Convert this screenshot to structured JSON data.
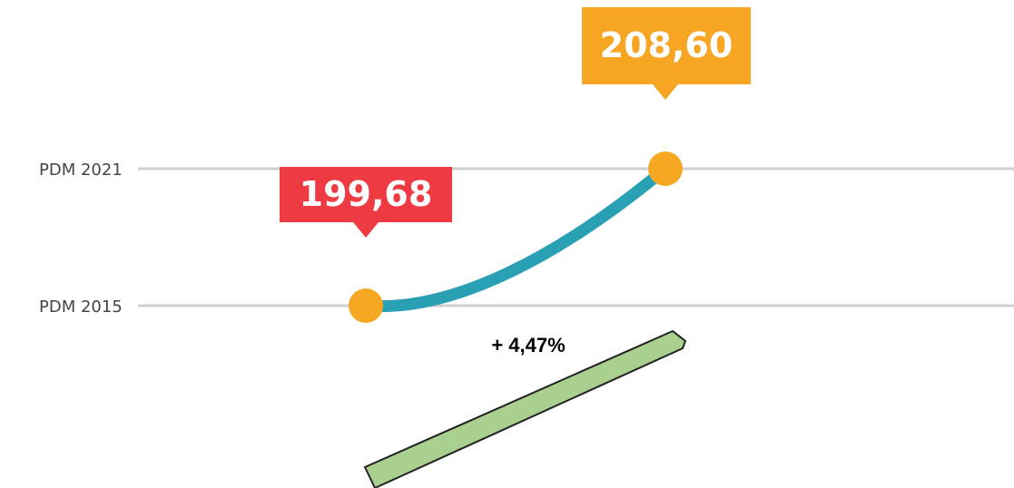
{
  "chart_data": {
    "type": "slope",
    "categories": [
      "PDM 2015",
      "PDM 2021"
    ],
    "values": [
      199.68,
      208.6
    ],
    "value_labels": [
      "199,68",
      "208,60"
    ],
    "label_colors": [
      "#ee3a43",
      "#f6a623"
    ],
    "line_color": "#2aa0b4",
    "point_color": "#f7a823",
    "annotation": "+ 4,47%",
    "grid": true
  }
}
